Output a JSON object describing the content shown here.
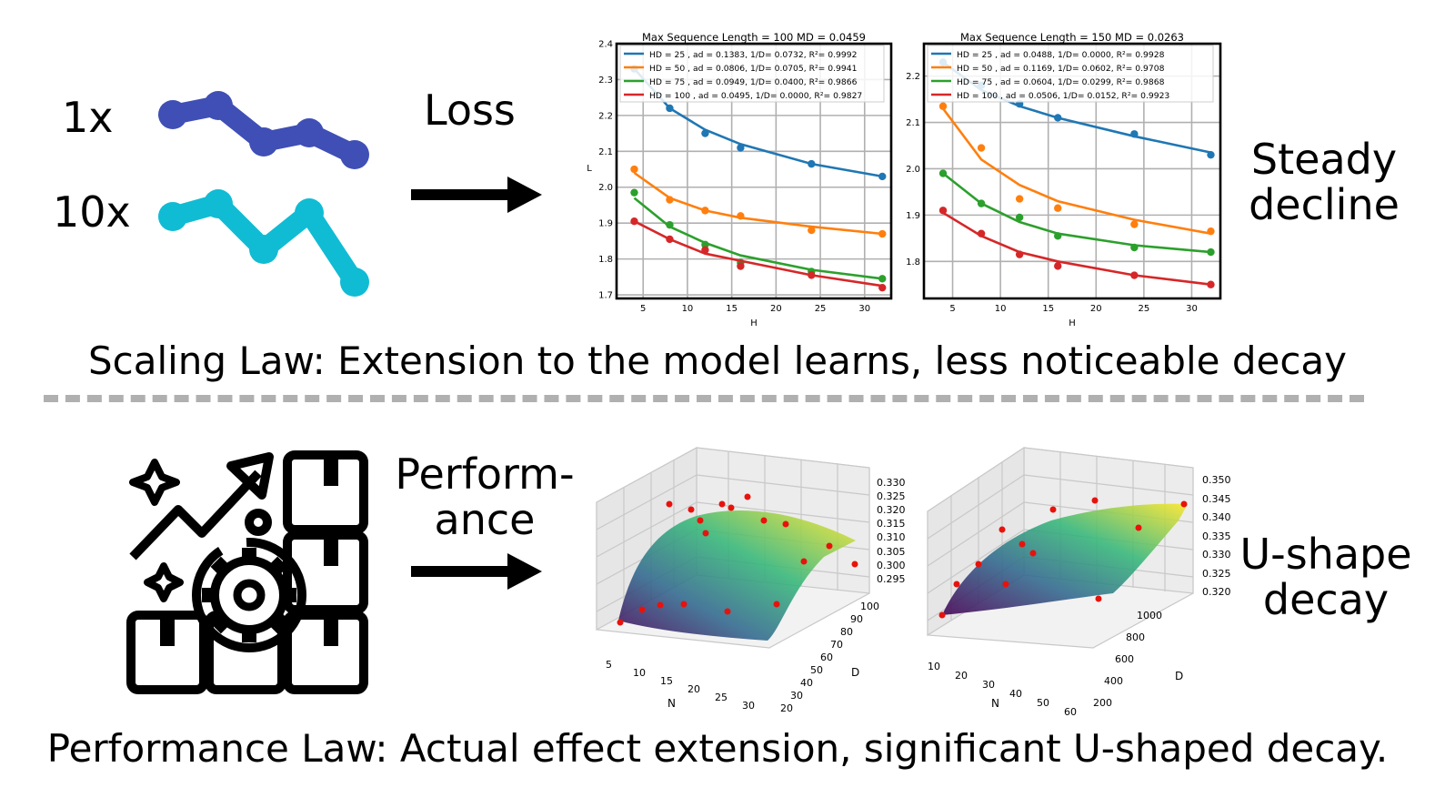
{
  "top": {
    "labels": {
      "x1": "1x",
      "x10": "10x"
    },
    "arrow_label": "Loss",
    "result": [
      "Steady",
      "decline"
    ],
    "caption": "Scaling Law: Extension to the model learns, less noticeable decay",
    "colors": {
      "line1x": "#3f4fb5",
      "line10x": "#0fbcd4"
    }
  },
  "bottom": {
    "arrow_label": [
      "Perform-",
      "ance"
    ],
    "result": [
      "U-shape",
      "decay"
    ],
    "caption": "Performance Law: Actual effect extension, significant U-shaped decay.",
    "icon": "growth-gear-boxes-icon"
  },
  "chart_data": [
    {
      "type": "scatter",
      "title": "Max Sequence Length = 100 MD = 0.0459",
      "xlabel": "H",
      "ylabel": "L",
      "xlim": [
        2,
        33
      ],
      "ylim": [
        1.69,
        2.4
      ],
      "xticks": [
        5,
        10,
        15,
        20,
        25,
        30
      ],
      "yticks": [
        1.7,
        1.8,
        1.9,
        2.0,
        2.1,
        2.2,
        2.3,
        2.4
      ],
      "grid": true,
      "legend_position": "top",
      "series": [
        {
          "name": "HD = 25 , ad = 0.1383, 1/D= 0.0732, R²= 0.9992",
          "color": "#1f77b4",
          "points": [
            [
              4,
              2.33
            ],
            [
              8,
              2.22
            ],
            [
              12,
              2.15
            ],
            [
              16,
              2.11
            ],
            [
              24,
              2.065
            ],
            [
              32,
              2.03
            ]
          ],
          "fit": [
            [
              4,
              2.33
            ],
            [
              8,
              2.22
            ],
            [
              12,
              2.16
            ],
            [
              16,
              2.12
            ],
            [
              24,
              2.065
            ],
            [
              32,
              2.03
            ]
          ]
        },
        {
          "name": "HD = 50 , ad = 0.0806, 1/D= 0.0705, R²= 0.9941",
          "color": "#ff7f0e",
          "points": [
            [
              4,
              2.05
            ],
            [
              8,
              1.965
            ],
            [
              12,
              1.935
            ],
            [
              16,
              1.92
            ],
            [
              24,
              1.88
            ],
            [
              32,
              1.87
            ]
          ],
          "fit": [
            [
              4,
              2.04
            ],
            [
              8,
              1.97
            ],
            [
              12,
              1.935
            ],
            [
              16,
              1.915
            ],
            [
              24,
              1.89
            ],
            [
              32,
              1.87
            ]
          ]
        },
        {
          "name": "HD = 75 , ad = 0.0949, 1/D= 0.0400, R²= 0.9866",
          "color": "#2ca02c",
          "points": [
            [
              4,
              1.985
            ],
            [
              8,
              1.895
            ],
            [
              12,
              1.84
            ],
            [
              16,
              1.79
            ],
            [
              24,
              1.765
            ],
            [
              32,
              1.745
            ]
          ],
          "fit": [
            [
              4,
              1.97
            ],
            [
              8,
              1.89
            ],
            [
              12,
              1.845
            ],
            [
              16,
              1.81
            ],
            [
              24,
              1.77
            ],
            [
              32,
              1.745
            ]
          ]
        },
        {
          "name": "HD = 100 , ad = 0.0495, 1/D= 0.0000, R²= 0.9827",
          "color": "#d62728",
          "points": [
            [
              4,
              1.905
            ],
            [
              8,
              1.855
            ],
            [
              12,
              1.825
            ],
            [
              16,
              1.78
            ],
            [
              24,
              1.755
            ],
            [
              32,
              1.72
            ]
          ],
          "fit": [
            [
              4,
              1.905
            ],
            [
              8,
              1.855
            ],
            [
              12,
              1.815
            ],
            [
              16,
              1.795
            ],
            [
              24,
              1.755
            ],
            [
              32,
              1.725
            ]
          ]
        }
      ]
    },
    {
      "type": "scatter",
      "title": "Max Sequence Length = 150 MD = 0.0263",
      "xlabel": "H",
      "ylabel": "L",
      "xlim": [
        2,
        33
      ],
      "ylim": [
        1.72,
        2.27
      ],
      "xticks": [
        5,
        10,
        15,
        20,
        25,
        30
      ],
      "yticks": [
        1.8,
        1.9,
        2.0,
        2.1,
        2.2
      ],
      "grid": true,
      "legend_position": "top",
      "series": [
        {
          "name": "HD = 25 , ad = 0.0488, 1/D= 0.0000, R²= 0.9928",
          "color": "#1f77b4",
          "points": [
            [
              4,
              2.23
            ],
            [
              8,
              2.18
            ],
            [
              12,
              2.14
            ],
            [
              16,
              2.11
            ],
            [
              24,
              2.075
            ],
            [
              32,
              2.03
            ]
          ],
          "fit": [
            [
              4,
              2.23
            ],
            [
              8,
              2.17
            ],
            [
              12,
              2.135
            ],
            [
              16,
              2.11
            ],
            [
              24,
              2.07
            ],
            [
              32,
              2.035
            ]
          ]
        },
        {
          "name": "HD = 50 , ad = 0.1169, 1/D= 0.0602, R²= 0.9708",
          "color": "#ff7f0e",
          "points": [
            [
              4,
              2.135
            ],
            [
              8,
              2.045
            ],
            [
              12,
              1.935
            ],
            [
              16,
              1.915
            ],
            [
              24,
              1.88
            ],
            [
              32,
              1.865
            ]
          ],
          "fit": [
            [
              4,
              2.13
            ],
            [
              8,
              2.02
            ],
            [
              12,
              1.965
            ],
            [
              16,
              1.93
            ],
            [
              24,
              1.89
            ],
            [
              32,
              1.86
            ]
          ]
        },
        {
          "name": "HD = 75 , ad = 0.0604, 1/D= 0.0299, R²= 0.9868",
          "color": "#2ca02c",
          "points": [
            [
              4,
              1.99
            ],
            [
              8,
              1.925
            ],
            [
              12,
              1.895
            ],
            [
              16,
              1.855
            ],
            [
              24,
              1.83
            ],
            [
              32,
              1.82
            ]
          ],
          "fit": [
            [
              4,
              1.99
            ],
            [
              8,
              1.925
            ],
            [
              12,
              1.885
            ],
            [
              16,
              1.86
            ],
            [
              24,
              1.835
            ],
            [
              32,
              1.82
            ]
          ]
        },
        {
          "name": "HD = 100 , ad = 0.0506, 1/D= 0.0152, R²= 0.9923",
          "color": "#d62728",
          "points": [
            [
              4,
              1.91
            ],
            [
              8,
              1.86
            ],
            [
              12,
              1.815
            ],
            [
              16,
              1.79
            ],
            [
              24,
              1.77
            ],
            [
              32,
              1.75
            ]
          ],
          "fit": [
            [
              4,
              1.905
            ],
            [
              8,
              1.855
            ],
            [
              12,
              1.82
            ],
            [
              16,
              1.8
            ],
            [
              24,
              1.77
            ],
            [
              32,
              1.75
            ]
          ]
        }
      ]
    },
    {
      "type": "surface3d",
      "xlabel": "N",
      "ylabel": "D",
      "xticks": [
        5,
        10,
        15,
        20,
        25,
        30
      ],
      "yticks": [
        20,
        30,
        40,
        50,
        60,
        70,
        80,
        90,
        100
      ],
      "zticks": [
        "0.295",
        "0.300",
        "0.305",
        "0.310",
        "0.315",
        "0.320",
        "0.325",
        "0.330"
      ],
      "colormap": "viridis"
    },
    {
      "type": "surface3d",
      "xlabel": "N",
      "ylabel": "D",
      "xticks": [
        10,
        20,
        30,
        40,
        50,
        60
      ],
      "yticks": [
        200,
        400,
        600,
        800,
        1000
      ],
      "zticks": [
        "0.320",
        "0.325",
        "0.330",
        "0.335",
        "0.340",
        "0.345",
        "0.350"
      ],
      "colormap": "viridis"
    }
  ]
}
